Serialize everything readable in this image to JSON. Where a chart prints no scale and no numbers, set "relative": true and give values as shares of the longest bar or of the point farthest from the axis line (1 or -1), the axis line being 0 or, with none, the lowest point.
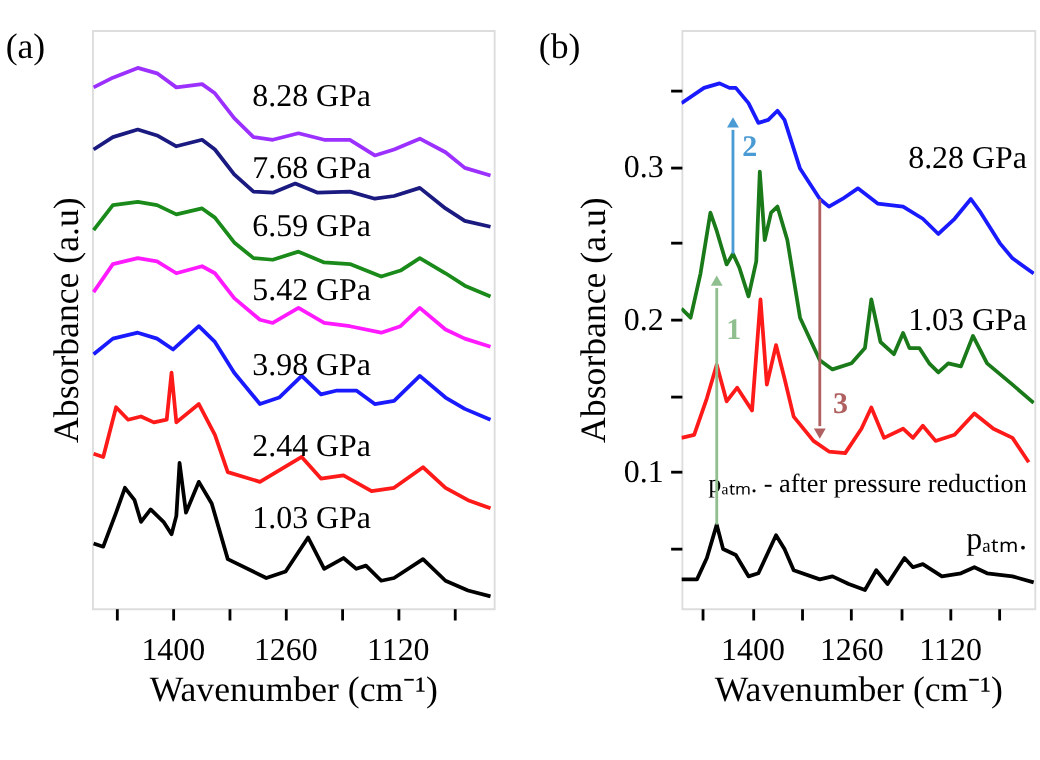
{
  "chart_data": [
    {
      "type": "line",
      "title": "(a)",
      "xlabel": "Wavenumber (cm⁻¹)",
      "ylabel": "Absorbance (a.u)",
      "relative": true,
      "xlim": [
        1500,
        1000
      ],
      "xticks": [
        {
          "value": 1470,
          "label": null
        },
        1400,
        {
          "value": 1330,
          "label": null
        },
        1260,
        {
          "value": 1190,
          "label": null
        },
        1120,
        {
          "value": 1050,
          "label": null
        }
      ],
      "series": [
        {
          "name": "8.28 GPa",
          "color": "#9b30ff",
          "x": [
            1498,
            1474,
            1443,
            1419,
            1395,
            1363,
            1347,
            1323,
            1299,
            1275,
            1243,
            1211,
            1179,
            1148,
            1124,
            1092,
            1060,
            1036,
            1004
          ],
          "values": [
            0.964,
            0.982,
            1.0,
            0.99,
            0.964,
            0.97,
            0.953,
            0.907,
            0.872,
            0.867,
            0.879,
            0.867,
            0.867,
            0.838,
            0.849,
            0.869,
            0.844,
            0.815,
            0.801
          ]
        },
        {
          "name": "7.68 GPa",
          "color": "#1a1a80",
          "x": [
            1498,
            1474,
            1443,
            1419,
            1395,
            1363,
            1347,
            1323,
            1299,
            1275,
            1247,
            1219,
            1179,
            1148,
            1124,
            1092,
            1060,
            1036,
            1004
          ],
          "values": [
            0.849,
            0.872,
            0.886,
            0.875,
            0.855,
            0.867,
            0.849,
            0.803,
            0.771,
            0.769,
            0.786,
            0.769,
            0.771,
            0.758,
            0.763,
            0.778,
            0.74,
            0.717,
            0.706
          ]
        },
        {
          "name": "6.59 GPa",
          "color": "#1a8a1a",
          "x": [
            1498,
            1474,
            1443,
            1419,
            1395,
            1363,
            1347,
            1323,
            1299,
            1275,
            1243,
            1211,
            1179,
            1140,
            1116,
            1092,
            1060,
            1036,
            1004
          ],
          "values": [
            0.7,
            0.746,
            0.752,
            0.746,
            0.729,
            0.74,
            0.723,
            0.677,
            0.648,
            0.645,
            0.66,
            0.64,
            0.637,
            0.614,
            0.625,
            0.648,
            0.62,
            0.597,
            0.577
          ]
        },
        {
          "name": "5.42 GPa",
          "color": "#ff1aff",
          "x": [
            1498,
            1474,
            1443,
            1419,
            1395,
            1363,
            1347,
            1323,
            1291,
            1275,
            1243,
            1211,
            1179,
            1140,
            1116,
            1092,
            1060,
            1036,
            1004
          ],
          "values": [
            0.585,
            0.637,
            0.648,
            0.642,
            0.62,
            0.633,
            0.62,
            0.574,
            0.534,
            0.528,
            0.556,
            0.528,
            0.522,
            0.51,
            0.522,
            0.556,
            0.516,
            0.499,
            0.484
          ]
        },
        {
          "name": "3.98 GPa",
          "color": "#1a1aff",
          "x": [
            1498,
            1474,
            1443,
            1419,
            1399,
            1367,
            1347,
            1323,
            1291,
            1267,
            1239,
            1215,
            1195,
            1171,
            1148,
            1124,
            1092,
            1060,
            1036,
            1004
          ],
          "values": [
            0.47,
            0.499,
            0.51,
            0.499,
            0.479,
            0.522,
            0.493,
            0.436,
            0.378,
            0.39,
            0.43,
            0.396,
            0.403,
            0.403,
            0.378,
            0.384,
            0.43,
            0.39,
            0.369,
            0.349
          ]
        },
        {
          "name": "2.44 GPa",
          "color": "#ff1a1a",
          "x": [
            1498,
            1486,
            1470,
            1455,
            1439,
            1423,
            1407,
            1401,
            1395,
            1367,
            1347,
            1331,
            1291,
            1239,
            1215,
            1187,
            1152,
            1124,
            1088,
            1060,
            1032,
            1004
          ],
          "values": [
            0.286,
            0.28,
            0.372,
            0.349,
            0.355,
            0.344,
            0.349,
            0.436,
            0.344,
            0.378,
            0.321,
            0.252,
            0.234,
            0.28,
            0.24,
            0.246,
            0.217,
            0.223,
            0.261,
            0.223,
            0.2,
            0.185
          ]
        },
        {
          "name": "1.03 GPa",
          "color": "#000000",
          "x": [
            1498,
            1486,
            1470,
            1459,
            1447,
            1439,
            1427,
            1411,
            1401,
            1395,
            1391,
            1383,
            1367,
            1351,
            1331,
            1283,
            1259,
            1231,
            1211,
            1187,
            1171,
            1159,
            1140,
            1124,
            1088,
            1060,
            1032,
            1004
          ],
          "values": [
            0.12,
            0.114,
            0.177,
            0.223,
            0.2,
            0.16,
            0.183,
            0.16,
            0.137,
            0.171,
            0.269,
            0.177,
            0.234,
            0.194,
            0.091,
            0.056,
            0.068,
            0.131,
            0.073,
            0.093,
            0.073,
            0.079,
            0.051,
            0.056,
            0.091,
            0.051,
            0.033,
            0.022
          ]
        }
      ]
    },
    {
      "type": "line",
      "title": "(b)",
      "xlabel": "Wavenumber (cm⁻¹)",
      "ylabel": "Absorbance (a.u)",
      "xlim": [
        1500,
        1000
      ],
      "xticks": [
        {
          "value": 1470,
          "label": null
        },
        1400,
        {
          "value": 1330,
          "label": null
        },
        1260,
        {
          "value": 1190,
          "label": null
        },
        1120,
        {
          "value": 1050,
          "label": null
        }
      ],
      "ylim": [
        0.01,
        0.39
      ],
      "yticks": [
        {
          "value": 0.05,
          "label": null
        },
        0.1,
        {
          "value": 0.15,
          "label": null
        },
        0.2,
        {
          "value": 0.25,
          "label": null
        },
        0.3,
        {
          "value": 0.35,
          "label": null
        }
      ],
      "annotations": [
        {
          "text": "1",
          "x": 1450,
          "y": 0.065
        },
        {
          "text": "2",
          "x": 1427,
          "y": 0.243
        },
        {
          "text": "3",
          "x": 1304,
          "y": 0.279
        }
      ],
      "series": [
        {
          "name": "8.28 GPa",
          "color": "#1a1aff",
          "x": [
            1500,
            1468,
            1446,
            1432,
            1423,
            1405,
            1391,
            1377,
            1364,
            1354,
            1332,
            1304,
            1291,
            1272,
            1250,
            1222,
            1186,
            1158,
            1136,
            1113,
            1090,
            1076,
            1049,
            1031,
            1001
          ],
          "values": [
            0.342,
            0.352,
            0.355,
            0.352,
            0.352,
            0.342,
            0.329,
            0.331,
            0.337,
            0.331,
            0.299,
            0.279,
            0.274,
            0.279,
            0.286,
            0.276,
            0.274,
            0.266,
            0.256,
            0.266,
            0.279,
            0.27,
            0.25,
            0.24,
            0.23
          ]
        },
        {
          "name": "1.03 GPa",
          "color": "#1a7a1a",
          "x": [
            1500,
            1487,
            1473,
            1459,
            1450,
            1436,
            1427,
            1418,
            1405,
            1394,
            1389,
            1382,
            1373,
            1364,
            1350,
            1332,
            1304,
            1286,
            1259,
            1240,
            1231,
            1218,
            1199,
            1186,
            1177,
            1163,
            1149,
            1136,
            1122,
            1104,
            1087,
            1067,
            1031,
            1001
          ],
          "values": [
            0.207,
            0.201,
            0.23,
            0.27,
            0.258,
            0.236,
            0.243,
            0.234,
            0.215,
            0.238,
            0.297,
            0.252,
            0.27,
            0.274,
            0.252,
            0.201,
            0.173,
            0.167,
            0.171,
            0.181,
            0.213,
            0.185,
            0.177,
            0.191,
            0.181,
            0.181,
            0.171,
            0.165,
            0.171,
            0.169,
            0.189,
            0.171,
            0.157,
            0.145
          ]
        },
        {
          "name": "pₐₜₘ. - after pressure reduction",
          "color": "#ff1a1a",
          "x": [
            1500,
            1482,
            1464,
            1450,
            1436,
            1421,
            1400,
            1388,
            1379,
            1366,
            1354,
            1341,
            1313,
            1291,
            1268,
            1245,
            1231,
            1213,
            1186,
            1172,
            1158,
            1140,
            1113,
            1085,
            1058,
            1031,
            1008
          ],
          "values": [
            0.122,
            0.124,
            0.148,
            0.17,
            0.146,
            0.155,
            0.14,
            0.213,
            0.157,
            0.183,
            0.161,
            0.136,
            0.12,
            0.113,
            0.112,
            0.128,
            0.142,
            0.122,
            0.128,
            0.122,
            0.13,
            0.12,
            0.124,
            0.138,
            0.128,
            0.122,
            0.106
          ]
        },
        {
          "name": "pₐₜₘ.",
          "color": "#000000",
          "x": [
            1500,
            1478,
            1464,
            1450,
            1441,
            1423,
            1405,
            1391,
            1377,
            1366,
            1354,
            1341,
            1304,
            1286,
            1263,
            1240,
            1224,
            1208,
            1184,
            1172,
            1158,
            1131,
            1104,
            1085,
            1067,
            1031,
            1001
          ],
          "values": [
            0.029,
            0.029,
            0.043,
            0.065,
            0.049,
            0.045,
            0.031,
            0.033,
            0.047,
            0.058,
            0.049,
            0.035,
            0.029,
            0.031,
            0.026,
            0.022,
            0.035,
            0.026,
            0.043,
            0.037,
            0.039,
            0.031,
            0.033,
            0.037,
            0.033,
            0.031,
            0.027
          ]
        }
      ]
    }
  ]
}
